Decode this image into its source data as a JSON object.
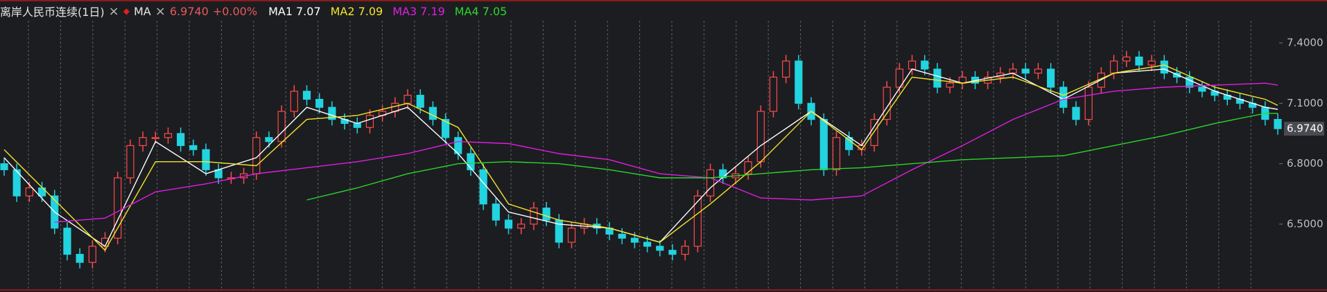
{
  "chart_data": {
    "type": "candlestick",
    "title": "离岸人民币连续(1日)",
    "indicator": "MA",
    "last_price": {
      "value": 6.974,
      "label": "6.9740"
    },
    "change": {
      "value": 0,
      "label": "+0.00%"
    },
    "up_color": "#ff4a4a",
    "down_color": "#22d3e0",
    "ylim": [
      6.18,
      7.51
    ],
    "yticks": [
      {
        "value": 6.5,
        "label": "6.5000"
      },
      {
        "value": 6.8,
        "label": "6.8000"
      },
      {
        "value": 7.1,
        "label": "7.1000"
      },
      {
        "value": 7.4,
        "label": "7.4000"
      }
    ],
    "open": [
      6.8,
      6.77,
      6.64,
      6.68,
      6.64,
      6.48,
      6.35,
      6.31,
      6.39,
      6.43,
      6.73,
      6.89,
      6.93,
      6.93,
      6.95,
      6.89,
      6.87,
      6.77,
      6.73,
      6.73,
      6.75,
      6.93,
      6.91,
      7.06,
      7.16,
      7.12,
      7.08,
      7.02,
      7.0,
      6.98,
      7.04,
      7.06,
      7.1,
      7.14,
      7.08,
      7.02,
      6.93,
      6.85,
      6.77,
      6.6,
      6.52,
      6.48,
      6.5,
      6.58,
      6.52,
      6.41,
      6.48,
      6.5,
      6.48,
      6.45,
      6.43,
      6.41,
      6.39,
      6.37,
      6.35,
      6.39,
      6.64,
      6.77,
      6.73,
      6.75,
      6.81,
      7.06,
      7.23,
      7.31,
      7.1,
      7.02,
      6.77,
      6.93,
      6.87,
      6.89,
      7.02,
      7.18,
      7.27,
      7.31,
      7.27,
      7.18,
      7.2,
      7.23,
      7.2,
      7.23,
      7.25,
      7.27,
      7.25,
      7.27,
      7.18,
      7.08,
      7.02,
      7.18,
      7.25,
      7.31,
      7.33,
      7.29,
      7.31,
      7.25,
      7.23,
      7.18,
      7.16,
      7.14,
      7.12,
      7.1,
      7.08,
      7.02
    ],
    "high": [
      6.83,
      6.8,
      6.71,
      6.71,
      6.67,
      6.51,
      6.38,
      6.42,
      6.46,
      6.76,
      6.92,
      6.96,
      6.96,
      6.98,
      6.98,
      6.92,
      6.9,
      6.8,
      6.76,
      6.78,
      6.96,
      6.96,
      7.09,
      7.19,
      7.19,
      7.15,
      7.11,
      7.05,
      7.03,
      7.07,
      7.09,
      7.13,
      7.17,
      7.17,
      7.11,
      7.05,
      6.96,
      6.88,
      6.8,
      6.63,
      6.55,
      6.53,
      6.61,
      6.61,
      6.55,
      6.51,
      6.53,
      6.53,
      6.51,
      6.48,
      6.46,
      6.44,
      6.42,
      6.4,
      6.42,
      6.67,
      6.8,
      6.8,
      6.78,
      6.84,
      7.09,
      7.26,
      7.34,
      7.34,
      7.13,
      7.05,
      6.96,
      6.96,
      6.92,
      7.05,
      7.21,
      7.3,
      7.34,
      7.34,
      7.3,
      7.23,
      7.26,
      7.26,
      7.26,
      7.28,
      7.3,
      7.3,
      7.3,
      7.3,
      7.21,
      7.11,
      7.21,
      7.28,
      7.34,
      7.36,
      7.36,
      7.34,
      7.34,
      7.28,
      7.26,
      7.21,
      7.19,
      7.17,
      7.15,
      7.13,
      7.11,
      7.05
    ],
    "low": [
      6.74,
      6.61,
      6.61,
      6.61,
      6.45,
      6.32,
      6.28,
      6.28,
      6.36,
      6.4,
      6.7,
      6.86,
      6.9,
      6.9,
      6.86,
      6.84,
      6.74,
      6.7,
      6.7,
      6.7,
      6.72,
      6.88,
      6.88,
      7.03,
      7.09,
      7.05,
      6.99,
      6.97,
      6.95,
      6.95,
      7.01,
      7.03,
      7.07,
      7.05,
      6.99,
      6.9,
      6.82,
      6.74,
      6.57,
      6.49,
      6.45,
      6.45,
      6.47,
      6.49,
      6.38,
      6.38,
      6.45,
      6.45,
      6.42,
      6.4,
      6.38,
      6.36,
      6.34,
      6.32,
      6.32,
      6.36,
      6.61,
      6.7,
      6.7,
      6.72,
      6.78,
      7.03,
      7.2,
      7.07,
      6.99,
      6.74,
      6.74,
      6.84,
      6.84,
      6.86,
      6.99,
      7.15,
      7.24,
      7.24,
      7.15,
      7.15,
      7.17,
      7.17,
      7.17,
      7.2,
      7.22,
      7.22,
      7.22,
      7.15,
      7.05,
      6.99,
      6.99,
      7.15,
      7.22,
      7.28,
      7.26,
      7.26,
      7.22,
      7.2,
      7.15,
      7.13,
      7.11,
      7.09,
      7.07,
      7.05,
      6.99,
      6.944
    ],
    "close": [
      6.77,
      6.64,
      6.68,
      6.64,
      6.48,
      6.35,
      6.31,
      6.39,
      6.43,
      6.73,
      6.89,
      6.93,
      6.93,
      6.95,
      6.89,
      6.87,
      6.77,
      6.73,
      6.73,
      6.75,
      6.93,
      6.91,
      7.06,
      7.16,
      7.12,
      7.08,
      7.02,
      7.0,
      6.98,
      7.04,
      7.06,
      7.1,
      7.14,
      7.08,
      7.02,
      6.93,
      6.85,
      6.77,
      6.6,
      6.52,
      6.48,
      6.5,
      6.58,
      6.52,
      6.41,
      6.48,
      6.5,
      6.48,
      6.45,
      6.43,
      6.41,
      6.39,
      6.37,
      6.35,
      6.39,
      6.64,
      6.77,
      6.73,
      6.75,
      6.81,
      7.06,
      7.23,
      7.31,
      7.1,
      7.02,
      6.77,
      6.93,
      6.87,
      6.89,
      7.02,
      7.18,
      7.27,
      7.31,
      7.27,
      7.18,
      7.2,
      7.23,
      7.2,
      7.23,
      7.25,
      7.27,
      7.25,
      7.27,
      7.18,
      7.08,
      7.02,
      7.18,
      7.25,
      7.31,
      7.33,
      7.29,
      7.31,
      7.25,
      7.23,
      7.18,
      7.16,
      7.14,
      7.12,
      7.1,
      7.08,
      7.02,
      6.974
    ],
    "series": [
      {
        "name": "MA1",
        "last": 7.07,
        "color": "#ffffff",
        "x": [
          0,
          4,
          8,
          12,
          16,
          20,
          24,
          28,
          32,
          36,
          40,
          44,
          48,
          52,
          56,
          60,
          64,
          68,
          72,
          76,
          80,
          84,
          88,
          92,
          96,
          100,
          101
        ],
        "values": [
          6.83,
          6.56,
          6.39,
          6.91,
          6.75,
          6.83,
          7.08,
          7.0,
          7.08,
          6.85,
          6.56,
          6.5,
          6.48,
          6.41,
          6.68,
          6.89,
          7.06,
          6.89,
          7.27,
          7.2,
          7.25,
          7.12,
          7.25,
          7.27,
          7.16,
          7.08,
          7.07
        ]
      },
      {
        "name": "MA2",
        "last": 7.09,
        "color": "#f5e52a",
        "x": [
          0,
          4,
          8,
          12,
          16,
          20,
          24,
          28,
          32,
          36,
          40,
          44,
          48,
          52,
          56,
          60,
          64,
          68,
          72,
          76,
          80,
          84,
          88,
          92,
          96,
          100,
          101
        ],
        "values": [
          6.87,
          6.62,
          6.37,
          6.81,
          6.81,
          6.79,
          7.02,
          7.04,
          7.1,
          6.98,
          6.6,
          6.52,
          6.48,
          6.41,
          6.6,
          6.81,
          7.06,
          6.87,
          7.23,
          7.2,
          7.23,
          7.14,
          7.25,
          7.29,
          7.18,
          7.12,
          7.09
        ]
      },
      {
        "name": "MA3",
        "last": 7.19,
        "color": "#e21ee2",
        "x": [
          0,
          4,
          8,
          12,
          16,
          20,
          24,
          28,
          32,
          36,
          40,
          44,
          48,
          52,
          56,
          60,
          64,
          68,
          72,
          76,
          80,
          84,
          88,
          92,
          96,
          100,
          101
        ],
        "values": [
          null,
          6.51,
          6.53,
          6.66,
          6.7,
          6.75,
          6.78,
          6.81,
          6.85,
          6.91,
          6.9,
          6.85,
          6.82,
          6.75,
          6.73,
          6.63,
          6.62,
          6.64,
          6.77,
          6.89,
          7.02,
          7.12,
          7.16,
          7.18,
          7.19,
          7.2,
          7.19
        ]
      },
      {
        "name": "MA4",
        "last": 7.05,
        "color": "#2bd82b",
        "x": [
          0,
          4,
          8,
          12,
          16,
          20,
          24,
          28,
          32,
          36,
          40,
          44,
          48,
          52,
          56,
          60,
          64,
          68,
          72,
          76,
          80,
          84,
          88,
          92,
          96,
          100,
          101
        ],
        "values": [
          null,
          null,
          null,
          null,
          null,
          null,
          6.62,
          6.68,
          6.75,
          6.8,
          6.81,
          6.8,
          6.77,
          6.73,
          6.73,
          6.75,
          6.77,
          6.78,
          6.8,
          6.82,
          6.83,
          6.84,
          6.89,
          6.94,
          7.0,
          7.05,
          7.05
        ]
      }
    ]
  }
}
